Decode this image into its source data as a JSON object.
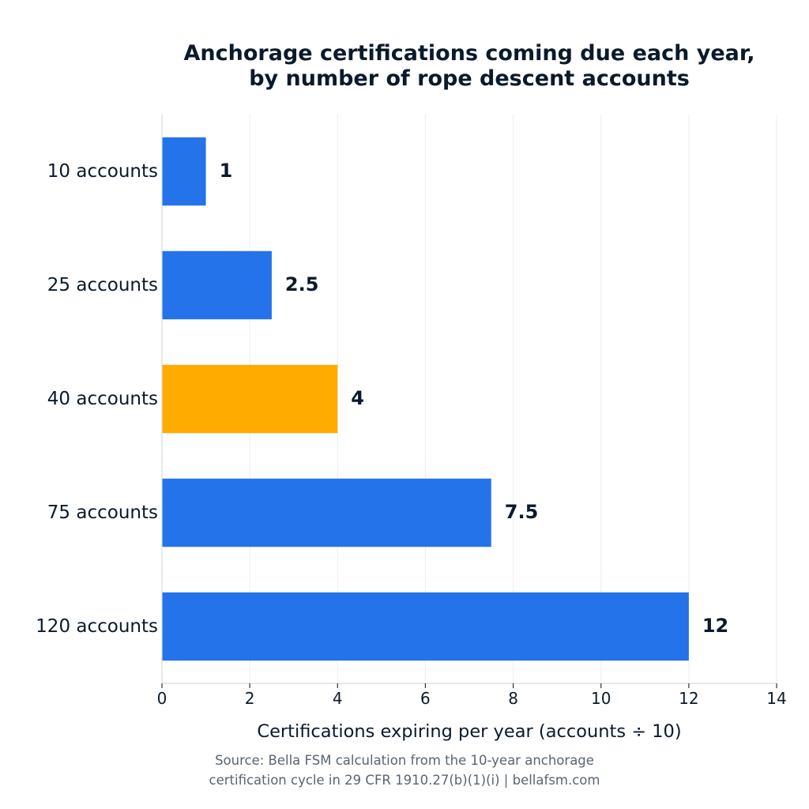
{
  "chart_data": {
    "type": "bar",
    "orientation": "horizontal",
    "title": [
      "Anchorage certifications coming due each year,",
      "by number of rope descent accounts"
    ],
    "xlabel": "Certifications expiring per year (accounts ÷ 10)",
    "ylabel": "",
    "categories": [
      "10 accounts",
      "25 accounts",
      "40 accounts",
      "75 accounts",
      "120 accounts"
    ],
    "values": [
      1,
      2.5,
      4,
      7.5,
      12
    ],
    "data_labels": [
      "1",
      "2.5",
      "4",
      "7.5",
      "12"
    ],
    "xlim": [
      0,
      14
    ],
    "xticks": [
      0,
      2,
      4,
      6,
      8,
      10,
      12,
      14
    ],
    "xtick_labels": [
      "0",
      "2",
      "4",
      "6",
      "8",
      "10",
      "12",
      "14"
    ],
    "highlight_index": 2,
    "colors": {
      "bar": "#2573ea",
      "highlight": "#ffab00",
      "text": "#0b1a2b",
      "grid": "#eef0f3"
    },
    "grid": true
  },
  "source": [
    "Source: Bella FSM calculation from the 10-year anchorage",
    "certification cycle in 29 CFR 1910.27(b)(1)(i)  |  bellafsm.com"
  ]
}
